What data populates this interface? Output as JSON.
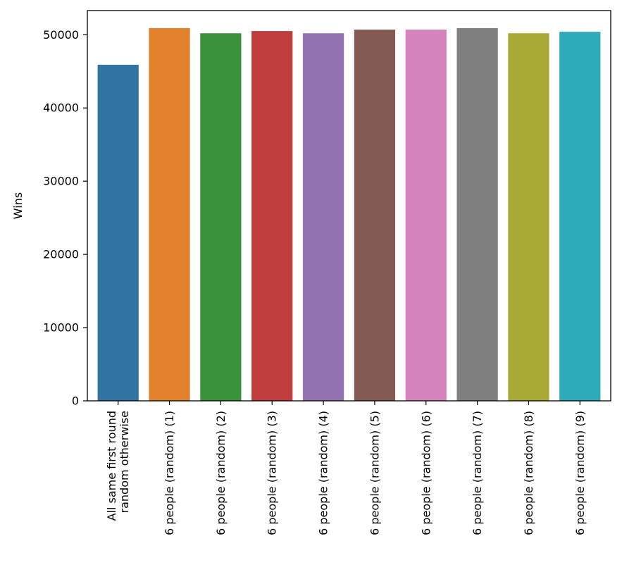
{
  "chart_data": {
    "type": "bar",
    "title": "",
    "xlabel": "",
    "ylabel": "Wins",
    "ylim": [
      0,
      53300
    ],
    "yticks": [
      0,
      10000,
      20000,
      30000,
      40000,
      50000
    ],
    "grid": false,
    "legend": "none",
    "categories": [
      [
        "All same first round",
        "random otherwise"
      ],
      [
        "6 people (random) (1)"
      ],
      [
        "6 people (random) (2)"
      ],
      [
        "6 people (random) (3)"
      ],
      [
        "6 people (random) (4)"
      ],
      [
        "6 people (random) (5)"
      ],
      [
        "6 people (random) (6)"
      ],
      [
        "6 people (random) (7)"
      ],
      [
        "6 people (random) (8)"
      ],
      [
        "6 people (random) (9)"
      ]
    ],
    "values": [
      45900,
      50900,
      50200,
      50500,
      50200,
      50700,
      50700,
      50900,
      50200,
      50400
    ],
    "colors": [
      "#3274a1",
      "#e1812c",
      "#3a923a",
      "#c03d3e",
      "#9372b2",
      "#845b53",
      "#d684bd",
      "#7f7f7f",
      "#a9aa35",
      "#2eabb8"
    ]
  }
}
